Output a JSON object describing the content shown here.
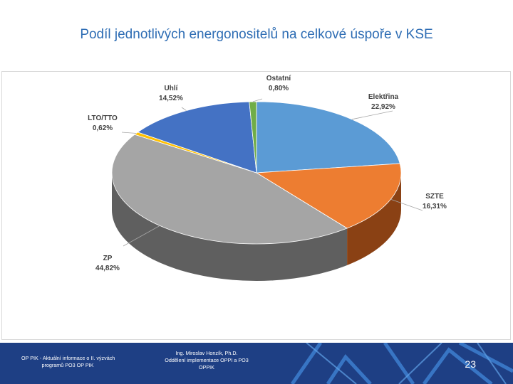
{
  "title": "Podíl jednotlivých energonositelů na celkové úspoře v KSE",
  "chart_data": {
    "type": "pie",
    "title": "",
    "slices": [
      {
        "label": "Elektřina",
        "value": 22.92,
        "display": "22,92%",
        "color": "#5b9bd5",
        "side": "#2f5f92"
      },
      {
        "label": "SZTE",
        "value": 16.31,
        "display": "16,31%",
        "color": "#ed7d31",
        "side": "#8a4114"
      },
      {
        "label": "ZP",
        "value": 44.82,
        "display": "44,82%",
        "color": "#a5a5a5",
        "side": "#5f5f5f"
      },
      {
        "label": "LTO/TTO",
        "value": 0.62,
        "display": "0,62%",
        "color": "#ffc000",
        "side": "#8c6a00"
      },
      {
        "label": "Uhlí",
        "value": 14.52,
        "display": "14,52%",
        "color": "#4472c4",
        "side": "#26457d"
      },
      {
        "label": "Ostatní",
        "value": 0.8,
        "display": "0,80%",
        "color": "#70ad47",
        "side": "#3e6b22"
      }
    ],
    "start_angle_deg": 0,
    "direction": "clockwise",
    "legend": "none"
  },
  "footer": {
    "left_lines": [
      "OP PIK - Aktuální informace o II. výzvách",
      "programů PO3 OP PIK"
    ],
    "mid_lines": [
      "Ing. Miroslav Honzík, Ph.D.",
      "Oddělení implementace OPPI a PO3",
      "OPPIK"
    ],
    "page_number": "23"
  }
}
